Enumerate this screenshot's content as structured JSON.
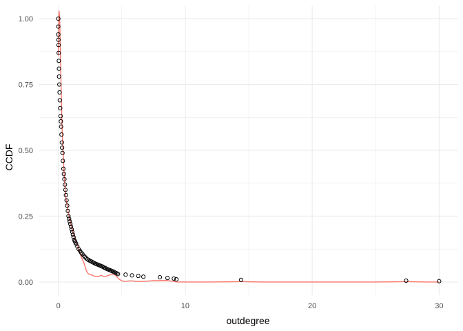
{
  "chart_data": {
    "type": "scatter",
    "title": "",
    "xlabel": "outdegree",
    "ylabel": "CCDF",
    "xlim": [
      -1.5,
      31.5
    ],
    "ylim": [
      -0.05,
      1.05
    ],
    "x_ticks": [
      0,
      10,
      20,
      30
    ],
    "x_tick_labels": [
      "0",
      "10",
      "20",
      "30"
    ],
    "y_ticks": [
      0,
      0.25,
      0.5,
      0.75,
      1
    ],
    "y_tick_labels": [
      "0.00",
      "0.25",
      "0.50",
      "0.75",
      "1.00"
    ],
    "x_minor_ticks": [
      5,
      15,
      25
    ],
    "y_minor_ticks": [
      0.125,
      0.375,
      0.625,
      0.875
    ],
    "grid": true,
    "legend": "none",
    "colors": {
      "points": "#000000",
      "density_line": "#F8766D",
      "grid": "#EBEBEB"
    },
    "series": [
      {
        "kind": "points",
        "x": [
          0.0,
          0.0,
          0.0,
          0.01,
          0.02,
          0.03,
          0.04,
          0.05,
          0.06,
          0.08,
          0.1,
          0.12,
          0.15,
          0.18,
          0.2,
          0.22,
          0.25,
          0.28,
          0.3,
          0.33,
          0.36,
          0.4,
          0.44,
          0.48,
          0.52,
          0.56,
          0.6,
          0.65,
          0.7,
          0.75,
          0.8,
          0.85,
          0.9,
          0.95,
          1.0,
          1.05,
          1.1,
          1.15,
          1.2,
          1.25,
          1.3,
          1.35,
          1.4,
          1.5,
          1.6,
          1.7,
          1.8,
          1.9,
          2.0,
          2.1,
          2.2,
          2.3,
          2.4,
          2.5,
          2.6,
          2.7,
          2.8,
          2.9,
          3.0,
          3.1,
          3.2,
          3.3,
          3.4,
          3.5,
          3.6,
          3.7,
          3.8,
          3.9,
          4.0,
          4.1,
          4.2,
          4.3,
          4.4,
          4.5,
          4.6,
          4.7,
          5.3,
          5.8,
          6.3,
          6.7,
          8.0,
          8.6,
          9.1,
          9.3,
          14.4,
          27.4,
          30.0
        ],
        "y": [
          1.0,
          0.97,
          0.94,
          0.92,
          0.9,
          0.87,
          0.84,
          0.81,
          0.78,
          0.75,
          0.72,
          0.69,
          0.66,
          0.63,
          0.61,
          0.59,
          0.56,
          0.53,
          0.51,
          0.49,
          0.46,
          0.43,
          0.41,
          0.39,
          0.37,
          0.35,
          0.33,
          0.31,
          0.29,
          0.27,
          0.25,
          0.24,
          0.23,
          0.22,
          0.21,
          0.2,
          0.19,
          0.18,
          0.17,
          0.16,
          0.155,
          0.15,
          0.145,
          0.135,
          0.125,
          0.118,
          0.112,
          0.106,
          0.1,
          0.095,
          0.09,
          0.086,
          0.083,
          0.08,
          0.078,
          0.075,
          0.073,
          0.07,
          0.068,
          0.066,
          0.064,
          0.062,
          0.06,
          0.058,
          0.055,
          0.053,
          0.05,
          0.048,
          0.046,
          0.044,
          0.042,
          0.04,
          0.038,
          0.035,
          0.033,
          0.03,
          0.028,
          0.025,
          0.023,
          0.02,
          0.018,
          0.015,
          0.013,
          0.01,
          0.008,
          0.005,
          0.003
        ]
      },
      {
        "kind": "density_line",
        "x": [
          0.0,
          0.03,
          0.06,
          0.1,
          0.14,
          0.18,
          0.22,
          0.26,
          0.3,
          0.35,
          0.4,
          0.45,
          0.5,
          0.55,
          0.6,
          0.7,
          0.8,
          0.9,
          1.0,
          1.1,
          1.2,
          1.3,
          1.4,
          1.5,
          1.6,
          1.7,
          1.8,
          1.9,
          2.0,
          2.1,
          2.2,
          2.3,
          2.4,
          2.5,
          2.6,
          2.7,
          2.8,
          3.0,
          3.2,
          3.4,
          3.6,
          3.8,
          4.0,
          4.2,
          4.4,
          4.6,
          4.8,
          5.0,
          5.2,
          5.4,
          5.6,
          5.8,
          6.0,
          6.5,
          7.0,
          7.5,
          8.0,
          8.3,
          8.6,
          9.0,
          9.2,
          9.4,
          9.6,
          10.0,
          12.0,
          14.0,
          14.4,
          14.8,
          16.0,
          20.0,
          25.0,
          27.0,
          27.4,
          27.8,
          29.0,
          30.0
        ],
        "y": [
          0.86,
          0.98,
          1.03,
          1.01,
          0.93,
          0.83,
          0.74,
          0.66,
          0.58,
          0.52,
          0.47,
          0.42,
          0.38,
          0.35,
          0.32,
          0.29,
          0.26,
          0.24,
          0.22,
          0.2,
          0.18,
          0.165,
          0.155,
          0.145,
          0.125,
          0.11,
          0.095,
          0.085,
          0.075,
          0.06,
          0.045,
          0.035,
          0.03,
          0.028,
          0.027,
          0.025,
          0.023,
          0.02,
          0.022,
          0.025,
          0.02,
          0.022,
          0.026,
          0.028,
          0.03,
          0.02,
          0.01,
          0.005,
          0.002,
          0.003,
          0.004,
          0.004,
          0.003,
          0.002,
          0.003,
          0.005,
          0.005,
          0.006,
          0.005,
          0.003,
          0.001,
          0.0,
          0.0,
          0.0,
          0.0,
          0.001,
          0.002,
          0.001,
          0.0,
          0.0,
          0.0,
          0.001,
          0.002,
          0.001,
          0.0,
          0.0
        ]
      }
    ]
  }
}
